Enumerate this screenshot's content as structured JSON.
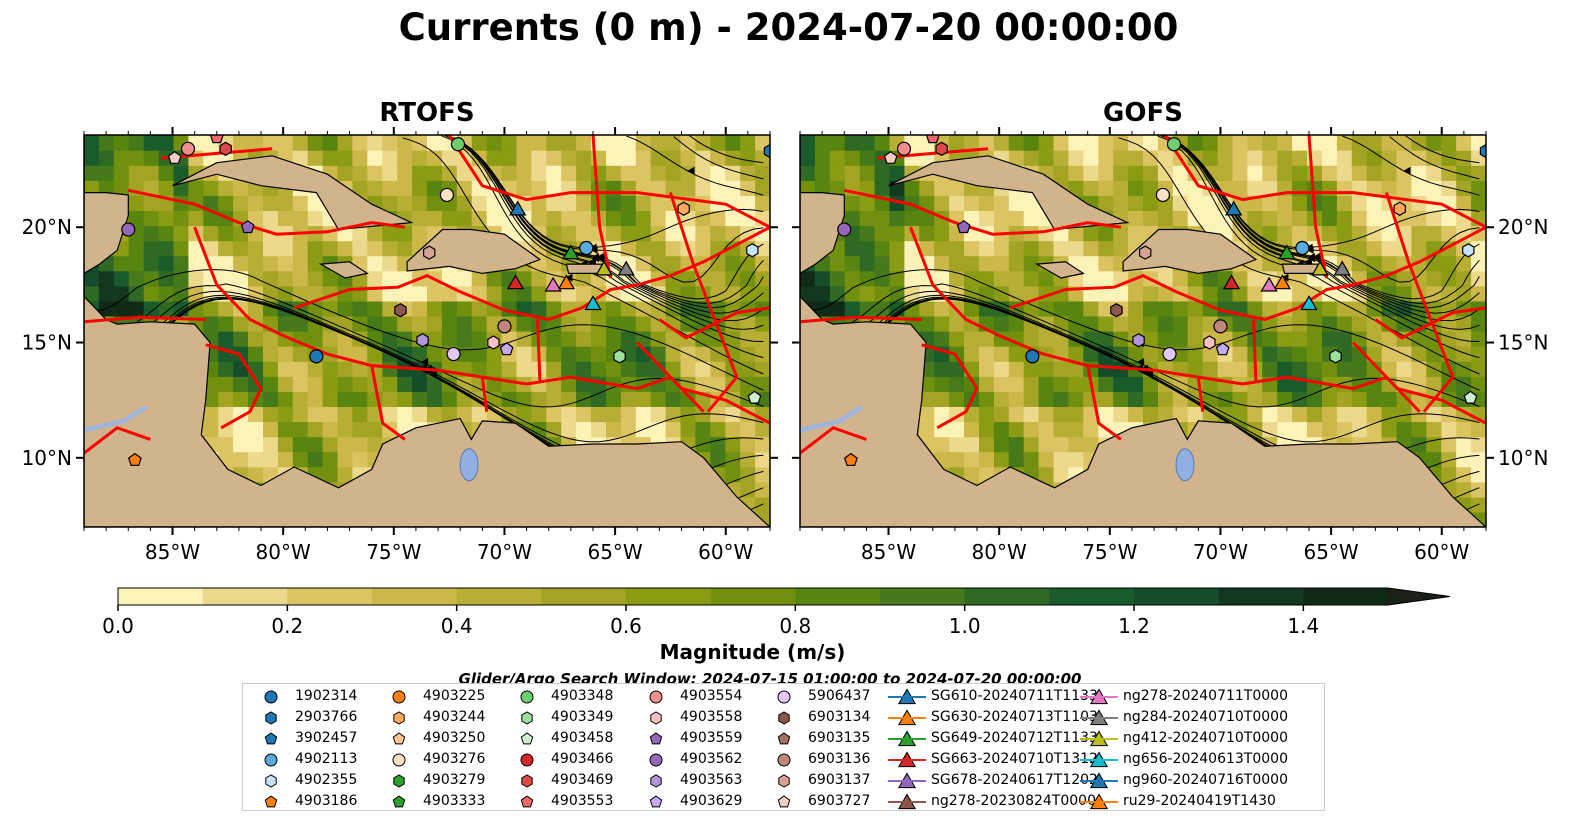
{
  "title": "Currents (0 m) - 2024-07-20 00:00:00",
  "panels": [
    {
      "name": "RTOFS"
    },
    {
      "name": "GOFS"
    }
  ],
  "colorbar": {
    "label": "Magnitude (m/s)",
    "ticks": [
      "0.0",
      "0.2",
      "0.4",
      "0.6",
      "0.8",
      "1.0",
      "1.2",
      "1.4"
    ],
    "colors": [
      "#fcf3b9",
      "#ecd98b",
      "#ddc463",
      "#ccb849",
      "#b7ae35",
      "#a3a423",
      "#8b9b13",
      "#70900e",
      "#58850f",
      "#45791a",
      "#2f6a24",
      "#1a5b2c",
      "#154c2a",
      "#12391f",
      "#102a16",
      "#1a2216"
    ],
    "extend": "max",
    "range": [
      0.0,
      1.5
    ]
  },
  "search_window": "Glider/Argo Search Window: 2024-07-15 01:00:00 to 2024-07-20 00:00:00",
  "map": {
    "lon_range": [
      -89,
      -58
    ],
    "lat_range": [
      7,
      24
    ],
    "lon_ticks": [
      "85°W",
      "80°W",
      "75°W",
      "70°W",
      "65°W",
      "60°W"
    ],
    "lat_ticks": [
      "20°N",
      "15°N",
      "10°N"
    ],
    "land_color": "#d2b48c",
    "eez_color": "#ff0000",
    "river_color": "#a0b4d8",
    "lake_color": "#8fb0e0"
  },
  "chart_data": {
    "type": "map",
    "variable": "surface current magnitude (m/s) with streamlines",
    "series": [
      {
        "name": "1902314",
        "marker": "circle",
        "color": "#1f77b4",
        "lon": -78.5,
        "lat": 14.4
      },
      {
        "name": "2903766",
        "marker": "hexagon",
        "color": "#1f77b4",
        "lon": -58.0,
        "lat": 23.3
      },
      {
        "name": "3902457",
        "marker": "pentagon",
        "color": "#1f77b4"
      },
      {
        "name": "4902113",
        "marker": "circle",
        "color": "#5aaae0",
        "lon": -66.3,
        "lat": 19.1
      },
      {
        "name": "4902355",
        "marker": "hexagon",
        "color": "#c6e4f7",
        "lon": -58.8,
        "lat": 19.0
      },
      {
        "name": "4903186",
        "marker": "pentagon",
        "color": "#ff7f0e",
        "lon": -86.7,
        "lat": 9.9
      },
      {
        "name": "4903225",
        "marker": "circle",
        "color": "#ff7f0e"
      },
      {
        "name": "4903244",
        "marker": "hexagon",
        "color": "#ffa95c",
        "lon": -61.9,
        "lat": 20.8
      },
      {
        "name": "4903250",
        "marker": "pentagon",
        "color": "#ffc597"
      },
      {
        "name": "4903276",
        "marker": "circle",
        "color": "#ffe1c4",
        "lon": -72.6,
        "lat": 21.4
      },
      {
        "name": "4903279",
        "marker": "hexagon",
        "color": "#2ca02c"
      },
      {
        "name": "4903333",
        "marker": "pentagon",
        "color": "#2ca02c"
      },
      {
        "name": "4903348",
        "marker": "circle",
        "color": "#6fcf6f",
        "lon": -72.1,
        "lat": 23.6
      },
      {
        "name": "4903349",
        "marker": "hexagon",
        "color": "#9ddf9d",
        "lon": -64.8,
        "lat": 14.4
      },
      {
        "name": "4903458",
        "marker": "pentagon",
        "color": "#cff0cf",
        "lon": -58.7,
        "lat": 12.6
      },
      {
        "name": "4903466",
        "marker": "circle",
        "color": "#d62728"
      },
      {
        "name": "4903469",
        "marker": "hexagon",
        "color": "#e04848",
        "lon": -82.6,
        "lat": 23.4
      },
      {
        "name": "4903553",
        "marker": "pentagon",
        "color": "#f06868",
        "lon": -83.0,
        "lat": 23.9
      },
      {
        "name": "4903554",
        "marker": "circle",
        "color": "#f08d8d",
        "lon": -84.3,
        "lat": 23.4
      },
      {
        "name": "4903558",
        "marker": "hexagon",
        "color": "#f8c2c2",
        "lon": -70.5,
        "lat": 15.0
      },
      {
        "name": "4903559",
        "marker": "pentagon",
        "color": "#9467bd",
        "lon": -81.6,
        "lat": 20.0
      },
      {
        "name": "4903562",
        "marker": "circle",
        "color": "#9467bd",
        "lon": -87.0,
        "lat": 19.9
      },
      {
        "name": "4903563",
        "marker": "hexagon",
        "color": "#b295d8",
        "lon": -73.7,
        "lat": 15.1
      },
      {
        "name": "4903629",
        "marker": "pentagon",
        "color": "#c5aaf0",
        "lon": -69.9,
        "lat": 14.7
      },
      {
        "name": "5906437",
        "marker": "circle",
        "color": "#e1c8f7",
        "lon": -72.3,
        "lat": 14.5
      },
      {
        "name": "6903134",
        "marker": "hexagon",
        "color": "#8c564b",
        "lon": -74.7,
        "lat": 16.4
      },
      {
        "name": "6903135",
        "marker": "pentagon",
        "color": "#a56f63"
      },
      {
        "name": "6903136",
        "marker": "circle",
        "color": "#c0877a",
        "lon": -70.0,
        "lat": 15.7
      },
      {
        "name": "6903137",
        "marker": "hexagon",
        "color": "#d9a397",
        "lon": -73.4,
        "lat": 18.9
      },
      {
        "name": "6903727",
        "marker": "pentagon",
        "color": "#f5cdc4",
        "lon": -84.9,
        "lat": 23.0
      },
      {
        "name": "SG610-20240711T1133",
        "marker": "triangle",
        "color": "#1f77b4",
        "lon": -69.4,
        "lat": 20.8
      },
      {
        "name": "SG630-20240713T1103",
        "marker": "triangle",
        "color": "#ff7f0e",
        "lon": -67.2,
        "lat": 17.6
      },
      {
        "name": "SG649-20240712T1133",
        "marker": "triangle",
        "color": "#2ca02c",
        "lon": -67.0,
        "lat": 18.9
      },
      {
        "name": "SG663-20240710T1312",
        "marker": "triangle",
        "color": "#d62728",
        "lon": -69.5,
        "lat": 17.6
      },
      {
        "name": "SG678-20240617T1202",
        "marker": "triangle",
        "color": "#9467bd"
      },
      {
        "name": "ng278-20230824T0000",
        "marker": "triangle",
        "color": "#8c564b"
      },
      {
        "name": "ng278-20240711T0000",
        "marker": "triangle",
        "color": "#e377c2",
        "lon": -67.8,
        "lat": 17.5
      },
      {
        "name": "ng284-20240710T0000",
        "marker": "triangle",
        "color": "#7f7f7f",
        "lon": -64.5,
        "lat": 18.2
      },
      {
        "name": "ng412-20240710T0000",
        "marker": "triangle",
        "color": "#bcbd22",
        "lon": -65.5,
        "lat": 18.2
      },
      {
        "name": "ng656-20240613T0000",
        "marker": "triangle",
        "color": "#17becf",
        "lon": -66.0,
        "lat": 16.7
      },
      {
        "name": "ng960-20240716T0000",
        "marker": "triangle",
        "color": "#1f77b4"
      },
      {
        "name": "ru29-20240419T1430",
        "marker": "triangle",
        "color": "#ff7f0e"
      }
    ]
  }
}
